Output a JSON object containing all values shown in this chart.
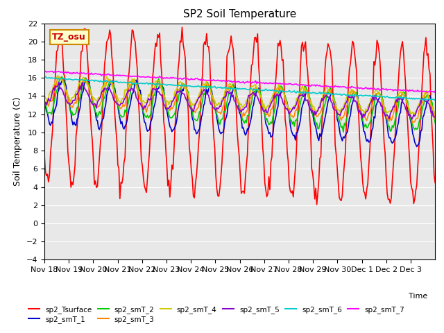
{
  "title": "SP2 Soil Temperature",
  "xlabel": "Time",
  "ylabel": "Soil Temperature (C)",
  "ylim": [
    -4,
    22
  ],
  "yticks": [
    -4,
    -2,
    0,
    2,
    4,
    6,
    8,
    10,
    12,
    14,
    16,
    18,
    20,
    22
  ],
  "background_color": "#ffffff",
  "plot_bg_color": "#e8e8e8",
  "series_colors": {
    "sp2_Tsurface": "#ff0000",
    "sp2_smT_1": "#0000cc",
    "sp2_smT_2": "#00cc00",
    "sp2_smT_3": "#ff8800",
    "sp2_smT_4": "#cccc00",
    "sp2_smT_5": "#8800cc",
    "sp2_smT_6": "#00cccc",
    "sp2_smT_7": "#ff00ff"
  },
  "tz_label": "TZ_osu",
  "tz_bg": "#ffffcc",
  "tz_border": "#cc8800",
  "tz_text_color": "#cc0000",
  "xticklabels": [
    "Nov 18",
    "Nov 19",
    "Nov 20",
    "Nov 21",
    "Nov 22",
    "Nov 23",
    "Nov 24",
    "Nov 25",
    "Nov 26",
    "Nov 27",
    "Nov 28",
    "Nov 29",
    "Nov 30",
    "Dec 1",
    "Dec 2",
    "Dec 3"
  ],
  "n_days": 16
}
